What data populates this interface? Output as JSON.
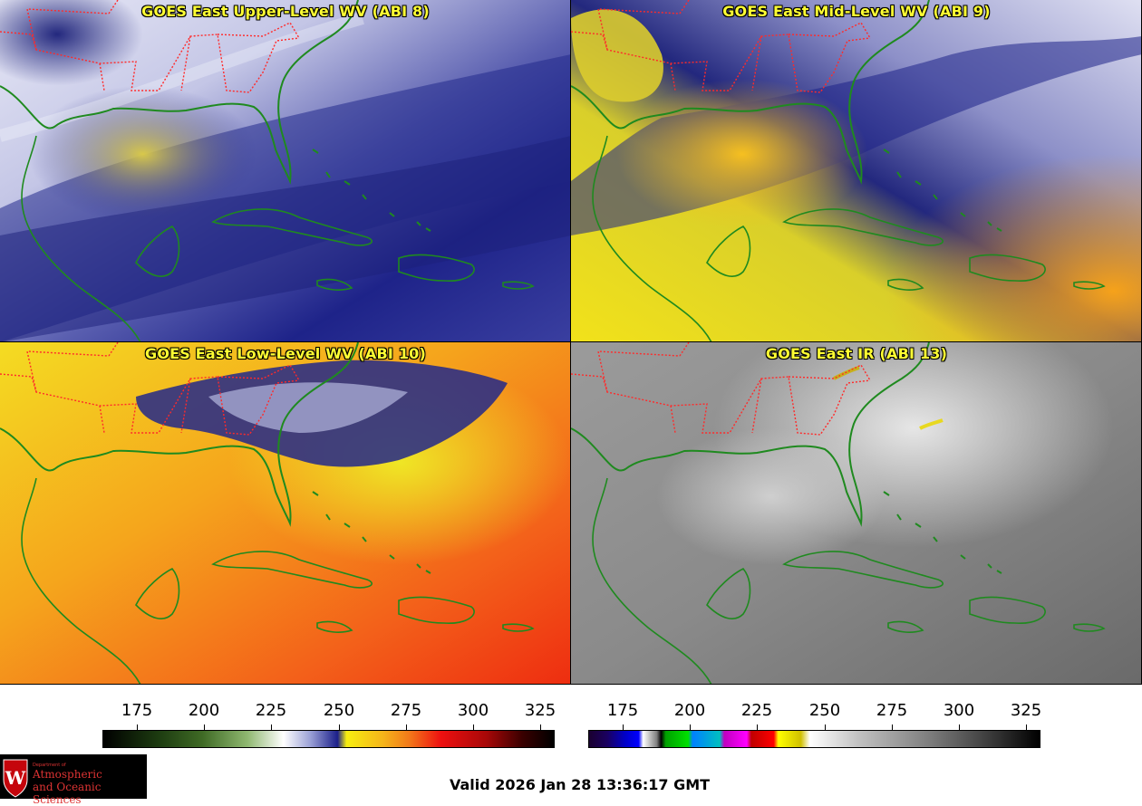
{
  "panels": [
    {
      "title": "GOES East Upper-Level WV (ABI 8)"
    },
    {
      "title": "GOES East Mid-Level WV (ABI 9)"
    },
    {
      "title": "GOES East Low-Level WV (ABI 10)"
    },
    {
      "title": "GOES East IR (ABI 13)"
    }
  ],
  "colorbars": [
    {
      "name": "wv-colorbar",
      "ticks": [
        "175",
        "200",
        "225",
        "250",
        "275",
        "300",
        "325"
      ]
    },
    {
      "name": "ir-colorbar",
      "ticks": [
        "175",
        "200",
        "225",
        "250",
        "275",
        "300",
        "325"
      ]
    }
  ],
  "logo": {
    "dept": "Department of",
    "line1": "Atmospheric",
    "line2": "and Oceanic Sciences",
    "crest_letter": "W"
  },
  "footer": {
    "valid": "Valid 2026 Jan 28 13:36:17 GMT"
  },
  "colors": {
    "title": "#ffff33",
    "coastline": "#1f8a1f",
    "state_border": "#ff2a2a"
  }
}
